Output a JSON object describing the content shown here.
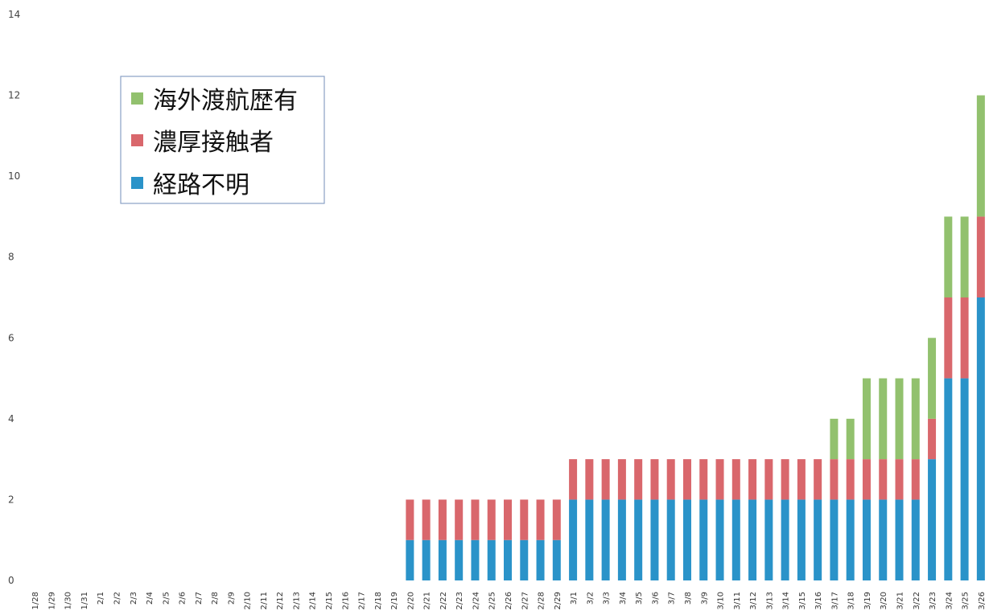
{
  "chart_data": {
    "type": "bar",
    "stacked": true,
    "title": "",
    "xlabel": "",
    "ylabel": "",
    "ylim": [
      0,
      14
    ],
    "yticks": [
      0,
      2,
      4,
      6,
      8,
      10,
      12,
      14
    ],
    "grid": false,
    "legend_position": "top-left",
    "categories": [
      "1/28",
      "1/29",
      "1/30",
      "1/31",
      "2/1",
      "2/2",
      "2/3",
      "2/4",
      "2/5",
      "2/6",
      "2/7",
      "2/8",
      "2/9",
      "2/10",
      "2/11",
      "2/12",
      "2/13",
      "2/14",
      "2/15",
      "2/16",
      "2/17",
      "2/18",
      "2/19",
      "2/20",
      "2/21",
      "2/22",
      "2/23",
      "2/24",
      "2/25",
      "2/26",
      "2/27",
      "2/28",
      "2/29",
      "3/1",
      "3/2",
      "3/3",
      "3/4",
      "3/5",
      "3/6",
      "3/7",
      "3/8",
      "3/9",
      "3/10",
      "3/11",
      "3/12",
      "3/13",
      "3/14",
      "3/15",
      "3/16",
      "3/17",
      "3/18",
      "3/19",
      "3/20",
      "3/21",
      "3/22",
      "3/23",
      "3/24",
      "3/25",
      "3/26"
    ],
    "series": [
      {
        "name": "経路不明",
        "color": "#2a93c9",
        "values": [
          0,
          0,
          0,
          0,
          0,
          0,
          0,
          0,
          0,
          0,
          0,
          0,
          0,
          0,
          0,
          0,
          0,
          0,
          0,
          0,
          0,
          0,
          0,
          1,
          1,
          1,
          1,
          1,
          1,
          1,
          1,
          1,
          1,
          2,
          2,
          2,
          2,
          2,
          2,
          2,
          2,
          2,
          2,
          2,
          2,
          2,
          2,
          2,
          2,
          2,
          2,
          2,
          2,
          2,
          2,
          3,
          5,
          5,
          7
        ]
      },
      {
        "name": "濃厚接触者",
        "color": "#d9676c",
        "values": [
          0,
          0,
          0,
          0,
          0,
          0,
          0,
          0,
          0,
          0,
          0,
          0,
          0,
          0,
          0,
          0,
          0,
          0,
          0,
          0,
          0,
          0,
          0,
          1,
          1,
          1,
          1,
          1,
          1,
          1,
          1,
          1,
          1,
          1,
          1,
          1,
          1,
          1,
          1,
          1,
          1,
          1,
          1,
          1,
          1,
          1,
          1,
          1,
          1,
          1,
          1,
          1,
          1,
          1,
          1,
          1,
          2,
          2,
          2
        ]
      },
      {
        "name": "海外渡航歴有",
        "color": "#92c16e",
        "values": [
          0,
          0,
          0,
          0,
          0,
          0,
          0,
          0,
          0,
          0,
          0,
          0,
          0,
          0,
          0,
          0,
          0,
          0,
          0,
          0,
          0,
          0,
          0,
          0,
          0,
          0,
          0,
          0,
          0,
          0,
          0,
          0,
          0,
          0,
          0,
          0,
          0,
          0,
          0,
          0,
          0,
          0,
          0,
          0,
          0,
          0,
          0,
          0,
          0,
          1,
          1,
          2,
          2,
          2,
          2,
          2,
          2,
          2,
          3
        ]
      }
    ],
    "legend_order": [
      "海外渡航歴有",
      "濃厚接触者",
      "経路不明"
    ]
  }
}
